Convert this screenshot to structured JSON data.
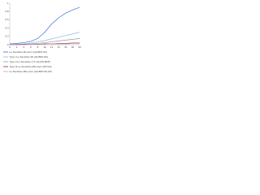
{
  "chart_data": {
    "type": "line",
    "x": [
      0,
      2,
      4,
      6,
      8,
      10,
      12,
      14,
      16,
      18,
      20
    ],
    "xlim": [
      0,
      20
    ],
    "xticks": [
      0,
      2,
      4,
      6,
      8,
      10,
      12,
      14,
      16,
      18,
      20
    ],
    "ylim": [
      0,
      1
    ],
    "yticks": [
      0,
      0.2,
      0.4,
      0.6,
      0.8,
      1
    ],
    "grid": false,
    "legend": "lower-left",
    "series": [
      {
        "name": "Le Sensitive Mt-norm (LE-BFP-0A)",
        "color": "#3f6fd8",
        "values": [
          0.02,
          0.03,
          0.05,
          0.08,
          0.15,
          0.3,
          0.5,
          0.65,
          0.76,
          0.84,
          0.9
        ]
      },
      {
        "name": "Type I Le Sensitive Mt (LE-BFP-0A)",
        "color": "#86b8ea",
        "values": [
          0,
          0.01,
          0.02,
          0.04,
          0.07,
          0.1,
          0.14,
          0.18,
          0.22,
          0.26,
          0.3
        ]
      },
      {
        "name": "Type II Le Sensitive (Y7-10) (FP-BFP)",
        "color": "#9a9a9a",
        "values": [
          0,
          0.01,
          0.01,
          0.02,
          0.03,
          0.05,
          0.07,
          0.09,
          0.11,
          0.13,
          0.15
        ]
      },
      {
        "name": "Type III Le Sensitive MH-norm (FP-DA)",
        "color": "#8b2a2a",
        "values": [
          0,
          0,
          0.01,
          0.01,
          0.01,
          0.02,
          0.02,
          0.03,
          0.03,
          0.04,
          0.04
        ]
      },
      {
        "name": "Le Sensitive MH-norm (LE-BFP-0A-FP)",
        "color": "#d79ac0",
        "values": [
          0,
          0,
          0,
          0.01,
          0.01,
          0.01,
          0.02,
          0.02,
          0.02,
          0.03,
          0.03
        ]
      }
    ]
  }
}
